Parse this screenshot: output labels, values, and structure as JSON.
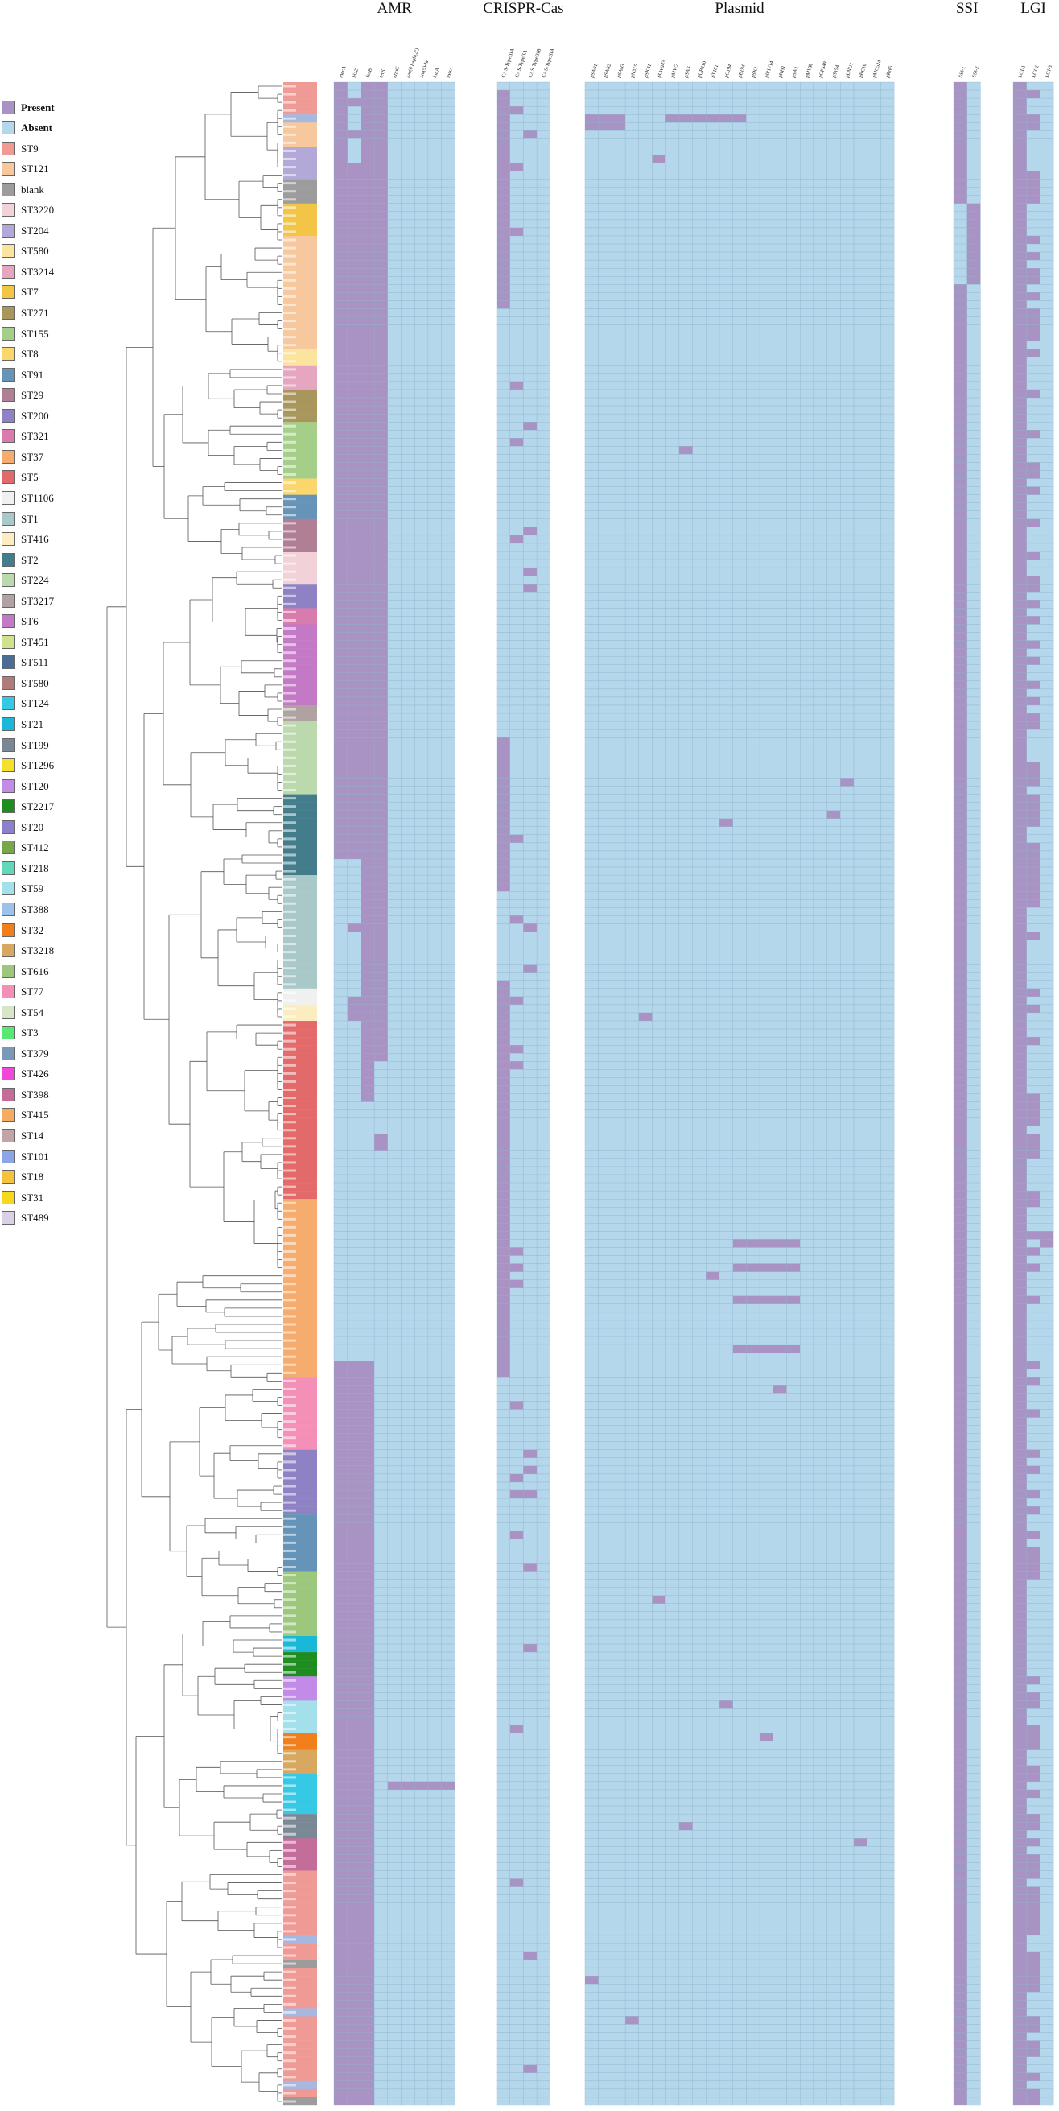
{
  "legend": {
    "status": [
      {
        "label": "Present",
        "color": "#a992c4",
        "bold": true
      },
      {
        "label": "Absent",
        "color": "#b5d7ec",
        "bold": true
      }
    ],
    "st_types": [
      {
        "label": "ST9",
        "color": "#f09a96"
      },
      {
        "label": "ST121",
        "color": "#f7c79d"
      },
      {
        "label": "blank",
        "color": "#9c9c9c"
      },
      {
        "label": "ST3220",
        "color": "#f2d2d8"
      },
      {
        "label": "ST204",
        "color": "#b3a9d8"
      },
      {
        "label": "ST580",
        "color": "#fbe49e"
      },
      {
        "label": "ST3214",
        "color": "#e6a5c0"
      },
      {
        "label": "ST7",
        "color": "#f2c547"
      },
      {
        "label": "ST271",
        "color": "#a8965c"
      },
      {
        "label": "ST155",
        "color": "#a5cf89"
      },
      {
        "label": "ST8",
        "color": "#fbd66a"
      },
      {
        "label": "ST91",
        "color": "#6594b8"
      },
      {
        "label": "ST29",
        "color": "#b07f96"
      },
      {
        "label": "ST200",
        "color": "#8f82c4"
      },
      {
        "label": "ST321",
        "color": "#d87cae"
      },
      {
        "label": "ST37",
        "color": "#f5ac6c"
      },
      {
        "label": "ST5",
        "color": "#e36a6a"
      },
      {
        "label": "ST1106",
        "color": "#f0f0f0"
      },
      {
        "label": "ST1",
        "color": "#a9c9c9"
      },
      {
        "label": "ST416",
        "color": "#fbedbf"
      },
      {
        "label": "ST2",
        "color": "#437d8c"
      },
      {
        "label": "ST224",
        "color": "#bcd9ad"
      },
      {
        "label": "ST3217",
        "color": "#b0a2a2"
      },
      {
        "label": "ST6",
        "color": "#c479c6"
      },
      {
        "label": "ST451",
        "color": "#cfe38f"
      },
      {
        "label": "ST511",
        "color": "#4c6c93"
      },
      {
        "label": "ST580",
        "color": "#b07c7a"
      },
      {
        "label": "ST124",
        "color": "#35c9e5"
      },
      {
        "label": "ST21",
        "color": "#1ab8d8"
      },
      {
        "label": "ST199",
        "color": "#7a8896"
      },
      {
        "label": "ST1296",
        "color": "#f5e02c"
      },
      {
        "label": "ST120",
        "color": "#c28be8"
      },
      {
        "label": "ST2217",
        "color": "#1f8c1f"
      },
      {
        "label": "ST20",
        "color": "#8c80cc"
      },
      {
        "label": "ST412",
        "color": "#76a84a"
      },
      {
        "label": "ST218",
        "color": "#62d8b8"
      },
      {
        "label": "ST59",
        "color": "#a4e0ec"
      },
      {
        "label": "ST388",
        "color": "#9cc2ec"
      },
      {
        "label": "ST32",
        "color": "#f07f1c"
      },
      {
        "label": "ST3218",
        "color": "#d8a860"
      },
      {
        "label": "ST616",
        "color": "#9cc77c"
      },
      {
        "label": "ST77",
        "color": "#f490b8"
      },
      {
        "label": "ST54",
        "color": "#d8e6c8"
      },
      {
        "label": "ST3",
        "color": "#58e874"
      },
      {
        "label": "ST379",
        "color": "#7c98b8"
      },
      {
        "label": "ST426",
        "color": "#f048d8"
      },
      {
        "label": "ST398",
        "color": "#c46c9a"
      },
      {
        "label": "ST415",
        "color": "#f4ac60"
      },
      {
        "label": "ST14",
        "color": "#c0a4a8"
      },
      {
        "label": "ST101",
        "color": "#8ca4e8"
      },
      {
        "label": "ST18",
        "color": "#f4c23c"
      },
      {
        "label": "ST31",
        "color": "#f8d81c"
      },
      {
        "label": "ST489",
        "color": "#dcd0e8"
      }
    ]
  },
  "colors": {
    "present": "#a992c4",
    "absent": "#b5d7ec",
    "grid": "#8fb2c9",
    "tree": "#555555"
  },
  "panels": [
    {
      "name": "AMR",
      "columns": [
        "mecA",
        "blaZ",
        "fosB",
        "tetK",
        "ermC",
        "aac(6')-aph(2'')",
        "ant(9)-Ia",
        "lnuA",
        "msrA"
      ],
      "present_base": [
        [
          0,
          0,
          95
        ],
        [
          1,
          10,
          95
        ],
        [
          2,
          0,
          125
        ],
        [
          3,
          0,
          120
        ]
      ]
    },
    {
      "name": "CRISPR-Cas",
      "columns": [
        "CAS-TypeIIIA",
        "CAS-TypeIIA",
        "CAS-TypeIIIB",
        "CAS-TypeIIIA"
      ],
      "present_base": []
    },
    {
      "name": "Plasmid",
      "columns": [
        "pSA01",
        "pSA02",
        "pSA03",
        "pN315",
        "pSK41",
        "pLW043",
        "pMW2",
        "pSAS",
        "pUB110",
        "pT181",
        "pC194",
        "pE194",
        "pSK1",
        "pIP1714",
        "pKH1",
        "pSA1",
        "pMVR",
        "pCPS49",
        "pS194",
        "pLNU1",
        "pBC16",
        "pMC524",
        "pRN5"
      ],
      "present_base": []
    },
    {
      "name": "SSI",
      "columns": [
        "SSI-1",
        "SSI-2"
      ],
      "present_base": [
        [
          0,
          0,
          249
        ]
      ]
    },
    {
      "name": "LGI",
      "columns": [
        "LGI-1",
        "LGI-2",
        "LGI-3"
      ],
      "present_base": [
        [
          0,
          0,
          249
        ]
      ]
    }
  ],
  "samples": {
    "count": 250
  }
}
